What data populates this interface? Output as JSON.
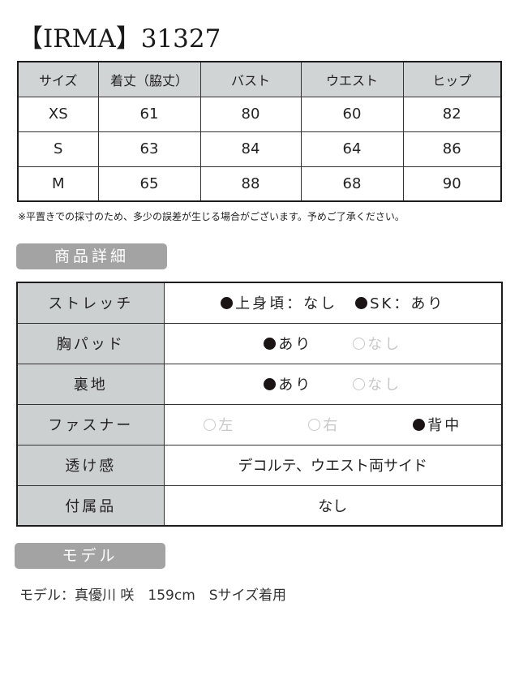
{
  "title": "【IRMA】31327",
  "size_table": {
    "headers": [
      "サイズ",
      "着丈（脇丈）",
      "バスト",
      "ウエスト",
      "ヒップ"
    ],
    "rows": [
      [
        "XS",
        "61",
        "80",
        "60",
        "82"
      ],
      [
        "S",
        "63",
        "84",
        "64",
        "86"
      ],
      [
        "M",
        "65",
        "88",
        "68",
        "90"
      ]
    ]
  },
  "note": "※平置きでの採寸のため、多少の誤差が生じる場合がございます。予めご了承ください。",
  "details_label": "商品詳細",
  "details": [
    {
      "key": "ストレッチ",
      "options": [
        {
          "text": "上身頃：なし",
          "selected": true
        },
        {
          "text": "SK：あり",
          "selected": true
        }
      ]
    },
    {
      "key": "胸パッド",
      "options": [
        {
          "text": "あり",
          "selected": true
        },
        {
          "text": "なし",
          "selected": false
        }
      ]
    },
    {
      "key": "裏地",
      "options": [
        {
          "text": "あり",
          "selected": true
        },
        {
          "text": "なし",
          "selected": false
        }
      ]
    },
    {
      "key": "ファスナー",
      "options": [
        {
          "text": "左",
          "selected": false
        },
        {
          "text": "右",
          "selected": false
        },
        {
          "text": "背中",
          "selected": true
        }
      ]
    },
    {
      "key": "透け感",
      "value": "デコルテ、ウエスト両サイド"
    },
    {
      "key": "付属品",
      "value": "なし"
    }
  ],
  "model_label": "モデル",
  "model_text": "モデル：真優川 咲　159cm　Sサイズ着用"
}
